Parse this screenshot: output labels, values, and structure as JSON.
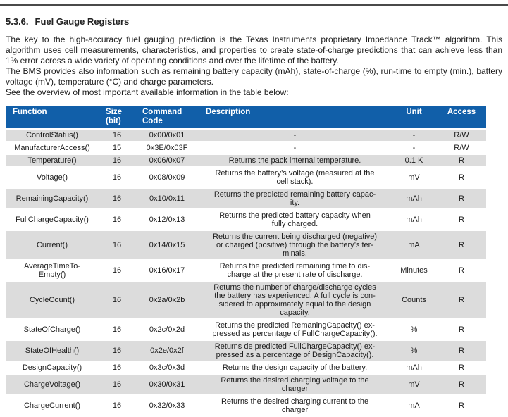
{
  "heading": {
    "number": "5.3.6.",
    "title": "Fuel Gauge Registers"
  },
  "intro": {
    "p1": "The key to the high-accuracy fuel gauging prediction is the Texas Instruments proprietary Impedance Track™ algorithm. This algorithm uses cell measurements, characteristics, and properties to create state-of-charge predictions that can achieve less than 1% error across a wide variety of operating conditions and over the lifetime of the battery.",
    "p2": "The BMS provides also information such as remaining battery capacity (mAh), state-of-charge (%), run-time to empty (min.), battery voltage (mV), temperature (°C) and charge parameters.",
    "p3": "See the overview of most important available information in the table below:"
  },
  "table": {
    "headers": [
      "Function",
      "Size\n(bit)",
      "Command\nCode",
      "Description",
      "Unit",
      "Access"
    ],
    "rows": [
      {
        "function": "ControlStatus()",
        "size": "16",
        "command": "0x00/0x01",
        "description": "-",
        "unit": "-",
        "access": "R/W"
      },
      {
        "function": "ManufacturerAccess()",
        "size": "15",
        "command": "0x3E/0x03F",
        "description": "-",
        "unit": "-",
        "access": "R/W"
      },
      {
        "function": "Temperature()",
        "size": "16",
        "command": "0x06/0x07",
        "description": "Returns the pack internal temperature.",
        "unit": "0.1 K",
        "access": "R"
      },
      {
        "function": "Voltage()",
        "size": "16",
        "command": "0x08/0x09",
        "description": "Returns the battery’s voltage (measured at the\ncell stack).",
        "unit": "mV",
        "access": "R"
      },
      {
        "function": "RemainingCapacity()",
        "size": "16",
        "command": "0x10/0x11",
        "description": "Returns the predicted remaining battery capac-\nity.",
        "unit": "mAh",
        "access": "R"
      },
      {
        "function": "FullChargeCapacity()",
        "size": "16",
        "command": "0x12/0x13",
        "description": "Returns the predicted battery capacity when\nfully charged.",
        "unit": "mAh",
        "access": "R"
      },
      {
        "function": "Current()",
        "size": "16",
        "command": "0x14/0x15",
        "description": "Returns the current being discharged (negative)\nor charged (positive) through the battery’s ter-\nminals.",
        "unit": "mA",
        "access": "R"
      },
      {
        "function": "AverageTimeTo-\nEmpty()",
        "size": "16",
        "command": "0x16/0x17",
        "description": "Returns the predicted remaining time to dis-\ncharge at the present rate of discharge.",
        "unit": "Minutes",
        "access": "R"
      },
      {
        "function": "CycleCount()",
        "size": "16",
        "command": "0x2a/0x2b",
        "description": "Returns the number of charge/discharge cycles\nthe battery has experienced. A full cycle is con-\nsidered to approximately equal to the design\ncapacity.",
        "unit": "Counts",
        "access": "R"
      },
      {
        "function": "StateOfCharge()",
        "size": "16",
        "command": "0x2c/0x2d",
        "description": "Returns the predicted RemaningCapacity() ex-\npressed as percentage of FullChargeCapacity().",
        "unit": "%",
        "access": "R"
      },
      {
        "function": "StateOfHealth()",
        "size": "16",
        "command": "0x2e/0x2f",
        "description": "Returns de predicted FullChargeCapacity() ex-\npressed as a percentage of DesignCapacity().",
        "unit": "%",
        "access": "R"
      },
      {
        "function": "DesignCapacity()",
        "size": "16",
        "command": "0x3c/0x3d",
        "description": "Returns the design capacity of the battery.",
        "unit": "mAh",
        "access": "R"
      },
      {
        "function": "ChargeVoltage()",
        "size": "16",
        "command": "0x30/0x31",
        "description": "Returns the desired charging voltage to the\ncharger",
        "unit": "mV",
        "access": "R"
      },
      {
        "function": "ChargeCurrent()",
        "size": "16",
        "command": "0x32/0x33",
        "description": "Returns the desired charging current to the\ncharger",
        "unit": "mA",
        "access": "R"
      }
    ]
  },
  "colors": {
    "header_bg": "#115FA9",
    "header_text": "#FFFFFF",
    "row_alt_bg": "#DCDCDC",
    "rule": "#4A4A4A",
    "text": "#1C1C1C"
  }
}
